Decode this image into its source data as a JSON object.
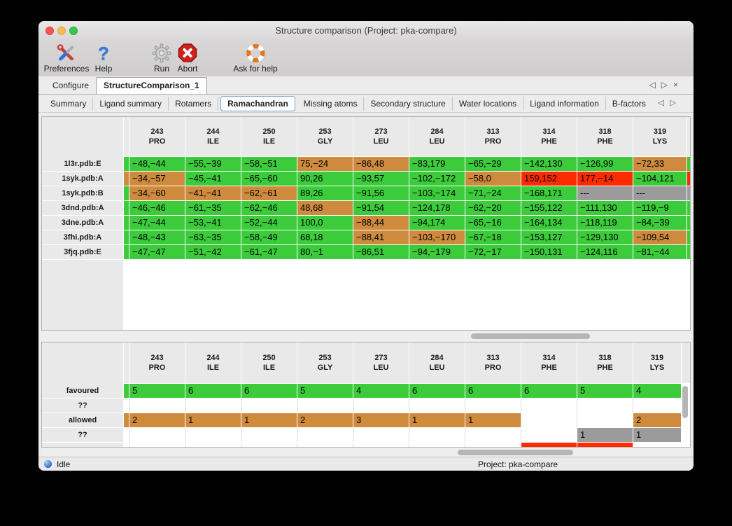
{
  "window": {
    "title": "Structure comparison (Project: pka-compare)"
  },
  "toolbar": {
    "items": [
      {
        "label": "Preferences",
        "icon": "tools-icon"
      },
      {
        "label": "Help",
        "icon": "question-mark-icon"
      },
      {
        "label": "Run",
        "icon": "gear-icon"
      },
      {
        "label": "Abort",
        "icon": "stop-x-icon"
      },
      {
        "label": "Ask for help",
        "icon": "lifebuoy-icon"
      }
    ]
  },
  "tabs": {
    "main": [
      {
        "label": "Configure",
        "selected": false
      },
      {
        "label": "StructureComparison_1",
        "selected": true
      }
    ],
    "main_nav": [
      "◁",
      "▷",
      "×"
    ],
    "sub": [
      {
        "label": "Summary",
        "selected": false
      },
      {
        "label": "Ligand summary",
        "selected": false
      },
      {
        "label": "Rotamers",
        "selected": false
      },
      {
        "label": "Ramachandran",
        "selected": true
      },
      {
        "label": "Missing atoms",
        "selected": false
      },
      {
        "label": "Secondary structure",
        "selected": false
      },
      {
        "label": "Water locations",
        "selected": false
      },
      {
        "label": "Ligand information",
        "selected": false
      },
      {
        "label": "B-factors",
        "selected": false
      }
    ],
    "sub_nav": [
      "◁",
      "▷"
    ]
  },
  "colors": {
    "favoured": "#3bcb3b",
    "allowed": "#cf8b3d",
    "outlier": "#ff2b00",
    "missing": "#9b9b9b",
    "none": "#ffffff"
  },
  "columns": [
    {
      "num": "243",
      "res": "PRO"
    },
    {
      "num": "244",
      "res": "ILE"
    },
    {
      "num": "250",
      "res": "ILE"
    },
    {
      "num": "253",
      "res": "GLY"
    },
    {
      "num": "273",
      "res": "LEU"
    },
    {
      "num": "284",
      "res": "LEU"
    },
    {
      "num": "313",
      "res": "PRO"
    },
    {
      "num": "314",
      "res": "PHE"
    },
    {
      "num": "318",
      "res": "PHE"
    },
    {
      "num": "319",
      "res": "LYS"
    }
  ],
  "structure_table": {
    "rows": [
      {
        "label": "1l3r.pdb:E",
        "strip": "f",
        "right": "f",
        "cells": [
          [
            "−48,−44",
            "f"
          ],
          [
            "−55,−39",
            "f"
          ],
          [
            "−58,−51",
            "f"
          ],
          [
            "75,−24",
            "a"
          ],
          [
            "−86,48",
            "a"
          ],
          [
            "−83,179",
            "f"
          ],
          [
            "−65,−29",
            "f"
          ],
          [
            "−142,130",
            "f"
          ],
          [
            "−126,99",
            "f"
          ],
          [
            "−72,33",
            "a"
          ]
        ]
      },
      {
        "label": "1syk.pdb:A",
        "strip": "a",
        "right": "o",
        "cells": [
          [
            "−34,−57",
            "a"
          ],
          [
            "−45,−41",
            "f"
          ],
          [
            "−65,−60",
            "f"
          ],
          [
            "90,26",
            "f"
          ],
          [
            "−93,57",
            "f"
          ],
          [
            "−102,−172",
            "f"
          ],
          [
            "−58,0",
            "a"
          ],
          [
            "159,152",
            "o"
          ],
          [
            "177,−14",
            "o"
          ],
          [
            "−104,121",
            "f"
          ]
        ]
      },
      {
        "label": "1syk.pdb:B",
        "strip": "f",
        "right": "m",
        "cells": [
          [
            "−34,−60",
            "a"
          ],
          [
            "−41,−41",
            "a"
          ],
          [
            "−62,−61",
            "a"
          ],
          [
            "89,26",
            "f"
          ],
          [
            "−91,56",
            "f"
          ],
          [
            "−103,−174",
            "f"
          ],
          [
            "−71,−24",
            "f"
          ],
          [
            "−168,171",
            "f"
          ],
          [
            "---",
            "m"
          ],
          [
            "---",
            "m"
          ]
        ]
      },
      {
        "label": "3dnd.pdb:A",
        "strip": "f",
        "right": "f",
        "cells": [
          [
            "−46,−46",
            "f"
          ],
          [
            "−61,−35",
            "f"
          ],
          [
            "−62,−46",
            "f"
          ],
          [
            "48,68",
            "a"
          ],
          [
            "−91,54",
            "f"
          ],
          [
            "−124,178",
            "f"
          ],
          [
            "−62,−20",
            "f"
          ],
          [
            "−155,122",
            "f"
          ],
          [
            "−111,130",
            "f"
          ],
          [
            "−119,−9",
            "f"
          ]
        ]
      },
      {
        "label": "3dne.pdb:A",
        "strip": "f",
        "right": "f",
        "cells": [
          [
            "−47,−44",
            "f"
          ],
          [
            "−53,−41",
            "f"
          ],
          [
            "−52,−44",
            "f"
          ],
          [
            "100,0",
            "f"
          ],
          [
            "−88,44",
            "a"
          ],
          [
            "−94,174",
            "f"
          ],
          [
            "−65,−16",
            "f"
          ],
          [
            "−164,134",
            "f"
          ],
          [
            "−118,119",
            "f"
          ],
          [
            "−84,−39",
            "f"
          ]
        ]
      },
      {
        "label": "3fhi.pdb:A",
        "strip": "f",
        "right": "f",
        "cells": [
          [
            "−48,−43",
            "f"
          ],
          [
            "−63,−35",
            "f"
          ],
          [
            "−58,−49",
            "f"
          ],
          [
            "68,18",
            "f"
          ],
          [
            "−88,41",
            "a"
          ],
          [
            "−103,−170",
            "a"
          ],
          [
            "−67,−18",
            "f"
          ],
          [
            "−153,127",
            "f"
          ],
          [
            "−129,130",
            "f"
          ],
          [
            "−109,54",
            "a"
          ]
        ]
      },
      {
        "label": "3fjq.pdb:E",
        "strip": "f",
        "right": "f",
        "cells": [
          [
            "−47,−47",
            "f"
          ],
          [
            "−51,−42",
            "f"
          ],
          [
            "−61,−47",
            "f"
          ],
          [
            "80,−1",
            "f"
          ],
          [
            "−86,51",
            "f"
          ],
          [
            "−94,−179",
            "f"
          ],
          [
            "−72,−17",
            "f"
          ],
          [
            "−150,131",
            "f"
          ],
          [
            "−124,116",
            "f"
          ],
          [
            "−81,−44",
            "f"
          ]
        ]
      }
    ]
  },
  "summary_table": {
    "rows": [
      {
        "label": "favoured",
        "strip": "f",
        "cells": [
          [
            "5",
            "f"
          ],
          [
            "6",
            "f"
          ],
          [
            "6",
            "f"
          ],
          [
            "5",
            "f"
          ],
          [
            "4",
            "f"
          ],
          [
            "6",
            "f"
          ],
          [
            "6",
            "f"
          ],
          [
            "6",
            "f"
          ],
          [
            "5",
            "f"
          ],
          [
            "4",
            "f"
          ]
        ]
      },
      {
        "label": "??",
        "strip": "w",
        "cells": [
          [
            "",
            "w"
          ],
          [
            "",
            "w"
          ],
          [
            "",
            "w"
          ],
          [
            "",
            "w"
          ],
          [
            "",
            "w"
          ],
          [
            "",
            "w"
          ],
          [
            "",
            "w"
          ],
          [
            "",
            "w"
          ],
          [
            "",
            "w"
          ],
          [
            "",
            "w"
          ]
        ]
      },
      {
        "label": "allowed",
        "strip": "a",
        "cells": [
          [
            "2",
            "a"
          ],
          [
            "1",
            "a"
          ],
          [
            "1",
            "a"
          ],
          [
            "2",
            "a"
          ],
          [
            "3",
            "a"
          ],
          [
            "1",
            "a"
          ],
          [
            "1",
            "a"
          ],
          [
            "",
            "w"
          ],
          [
            "",
            "w"
          ],
          [
            "2",
            "a"
          ]
        ]
      },
      {
        "label": "??",
        "strip": "w",
        "cells": [
          [
            "",
            "w"
          ],
          [
            "",
            "w"
          ],
          [
            "",
            "w"
          ],
          [
            "",
            "w"
          ],
          [
            "",
            "w"
          ],
          [
            "",
            "w"
          ],
          [
            "",
            "w"
          ],
          [
            "",
            "w"
          ],
          [
            "1",
            "m"
          ],
          [
            "1",
            "m"
          ]
        ]
      },
      {
        "label": "",
        "strip": "w",
        "cells": [
          [
            "",
            "w"
          ],
          [
            "",
            "w"
          ],
          [
            "",
            "w"
          ],
          [
            "",
            "w"
          ],
          [
            "",
            "w"
          ],
          [
            "",
            "w"
          ],
          [
            "",
            "w"
          ],
          [
            "",
            "o"
          ],
          [
            "",
            "o"
          ],
          [
            "",
            "w"
          ]
        ]
      }
    ]
  },
  "status_bar": {
    "status": "Idle",
    "project": "Project: pka-compare"
  }
}
